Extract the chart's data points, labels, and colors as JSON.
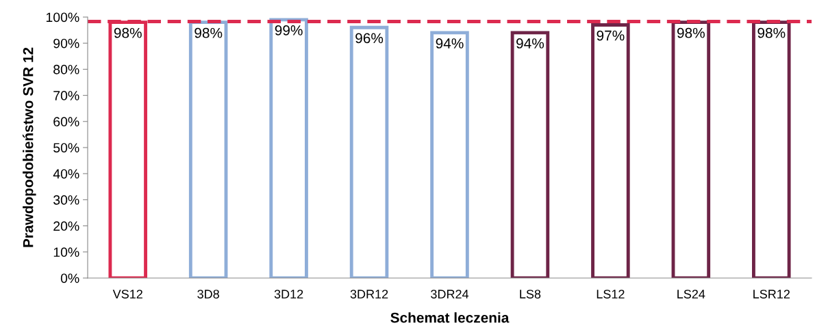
{
  "chart_data": {
    "type": "bar",
    "xlabel": "Schemat leczenia",
    "ylabel": "Prawdopodobieństwo SVR 12",
    "categories": [
      "VS12",
      "3D8",
      "3D12",
      "3DR12",
      "3DR24",
      "LS8",
      "LS12",
      "LS24",
      "LSR12"
    ],
    "values": [
      98,
      98,
      99,
      96,
      94,
      94,
      97,
      98,
      98
    ],
    "value_labels": [
      "98%",
      "98%",
      "99%",
      "96%",
      "94%",
      "94%",
      "97%",
      "98%",
      "98%"
    ],
    "colors": [
      "#dc2a4f",
      "#8eadd8",
      "#8eadd8",
      "#8eadd8",
      "#8eadd8",
      "#6e2447",
      "#6e2447",
      "#6e2447",
      "#6e2447"
    ],
    "ylim": [
      0,
      100
    ],
    "yticks": [
      {
        "value": 0,
        "label": "0%"
      },
      {
        "value": 10,
        "label": "10%"
      },
      {
        "value": 20,
        "label": "20%"
      },
      {
        "value": 30,
        "label": "30%"
      },
      {
        "value": 40,
        "label": "40%"
      },
      {
        "value": 50,
        "label": "50%"
      },
      {
        "value": 60,
        "label": "60%"
      },
      {
        "value": 70,
        "label": "70%"
      },
      {
        "value": 80,
        "label": "80%"
      },
      {
        "value": 90,
        "label": "90%"
      },
      {
        "value": 100,
        "label": "100%"
      }
    ],
    "ref_lines": [
      {
        "axis": "y",
        "value": 98.3,
        "color": "#dc2a4f",
        "line_style": "dashed"
      }
    ],
    "grid": false,
    "legend": false
  }
}
